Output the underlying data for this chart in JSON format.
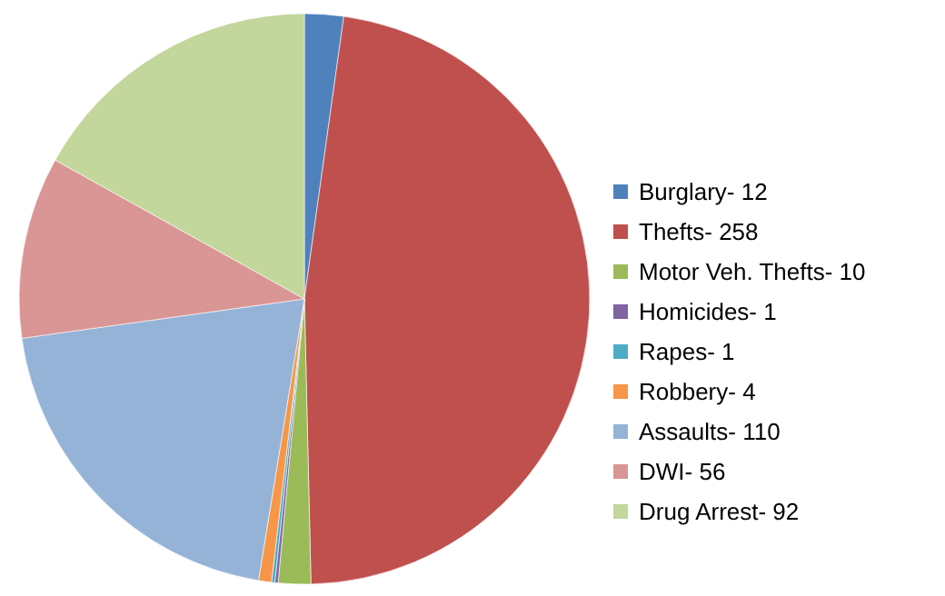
{
  "chart_data": {
    "type": "pie",
    "categories": [
      "Burglary-",
      "Thefts-",
      "Motor Veh. Thefts-",
      "Homicides-",
      "Rapes-",
      "Robbery-",
      "Assaults-",
      "DWI-",
      "Drug Arrest-"
    ],
    "values": [
      12,
      258,
      10,
      1,
      1,
      4,
      110,
      56,
      92
    ],
    "value_labels": [
      "12",
      "258",
      "10",
      "1",
      "1",
      "4",
      "110",
      "56",
      "92"
    ],
    "colors": [
      "#4f81bd",
      "#c0504d",
      "#9bbb59",
      "#8064a2",
      "#4bacc6",
      "#f79646",
      "#95b3d7",
      "#d99694",
      "#c3d69b"
    ],
    "legend": "right"
  }
}
